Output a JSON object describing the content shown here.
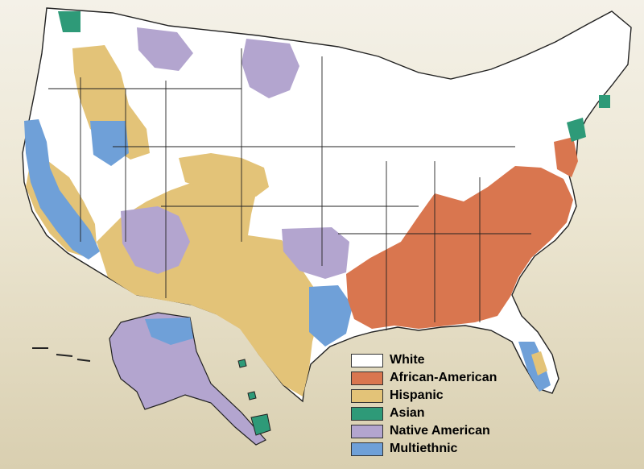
{
  "colors": {
    "white": "#ffffff",
    "african_american": "#d9764f",
    "hispanic": "#e3c378",
    "asian": "#2e9a78",
    "native_american": "#b3a5cf",
    "multiethnic": "#6fa0d8",
    "border": "#222222"
  },
  "legend": [
    {
      "label": "White",
      "color": "#ffffff"
    },
    {
      "label": "African-American",
      "color": "#d9764f"
    },
    {
      "label": "Hispanic",
      "color": "#e3c378"
    },
    {
      "label": "Asian",
      "color": "#2e9a78"
    },
    {
      "label": "Native American",
      "color": "#b3a5cf"
    },
    {
      "label": "Multiethnic",
      "color": "#6fa0d8"
    }
  ]
}
